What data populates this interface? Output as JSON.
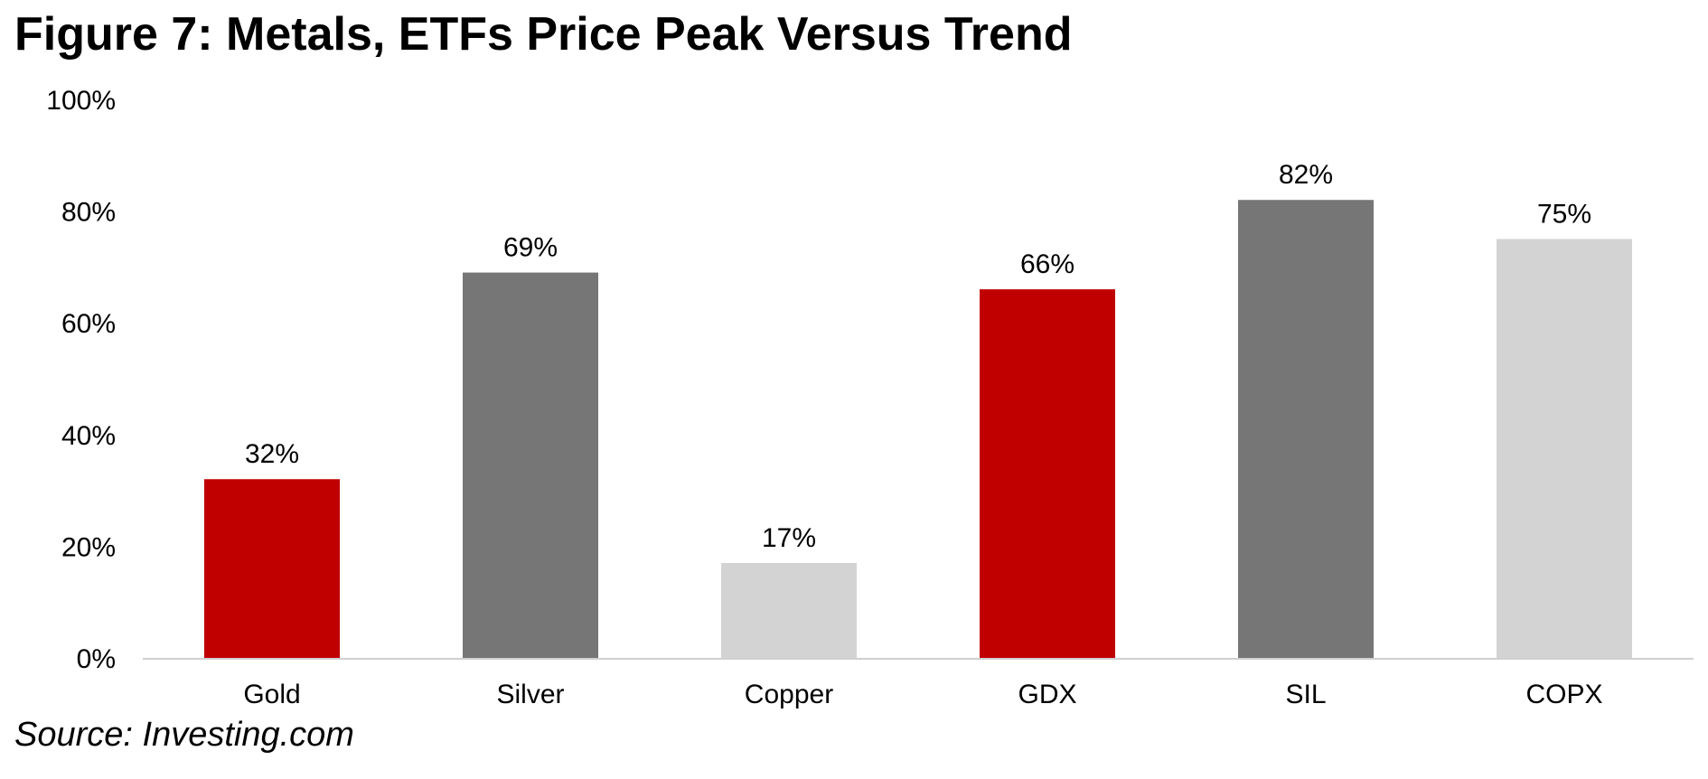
{
  "figure": {
    "title": "Figure 7: Metals, ETFs Price Peak Versus Trend",
    "source": "Source: Investing.com"
  },
  "chart_data": {
    "type": "bar",
    "title": "",
    "xlabel": "",
    "ylabel": "",
    "categories": [
      "Gold",
      "Silver",
      "Copper",
      "GDX",
      "SIL",
      "COPX"
    ],
    "values": [
      32,
      69,
      17,
      66,
      82,
      75
    ],
    "data_labels": [
      "32%",
      "69%",
      "17%",
      "66%",
      "82%",
      "75%"
    ],
    "bar_colors": [
      "#c00000",
      "#767676",
      "#d3d3d3",
      "#c00000",
      "#767676",
      "#d3d3d3"
    ],
    "ylim": [
      0,
      100
    ],
    "yticks": [
      0,
      20,
      40,
      60,
      80,
      100
    ],
    "ytick_labels": [
      "0%",
      "20%",
      "40%",
      "60%",
      "80%",
      "100%"
    ],
    "grid": false,
    "legend": "none"
  }
}
